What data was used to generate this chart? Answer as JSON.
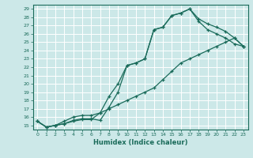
{
  "xlabel": "Humidex (Indice chaleur)",
  "bg_color": "#cce8e8",
  "grid_color": "#aed4d4",
  "line_color": "#1a6b5a",
  "ylim": [
    14.5,
    29.5
  ],
  "xlim": [
    -0.5,
    23.5
  ],
  "yticks": [
    15,
    16,
    17,
    18,
    19,
    20,
    21,
    22,
    23,
    24,
    25,
    26,
    27,
    28,
    29
  ],
  "xticks": [
    0,
    1,
    2,
    3,
    4,
    5,
    6,
    7,
    8,
    9,
    10,
    11,
    12,
    13,
    14,
    15,
    16,
    17,
    18,
    19,
    20,
    21,
    22,
    23
  ],
  "line1_x": [
    0,
    1,
    2,
    3,
    4,
    5,
    6,
    7,
    8,
    9,
    10,
    11,
    12,
    13,
    14,
    15,
    16,
    17,
    18,
    19,
    20,
    21,
    22,
    23
  ],
  "line1_y": [
    15.5,
    14.8,
    15.0,
    15.2,
    15.6,
    15.8,
    15.8,
    15.6,
    17.2,
    19.0,
    22.2,
    22.5,
    23.0,
    26.5,
    26.8,
    28.2,
    28.5,
    29.0,
    27.8,
    27.2,
    26.8,
    26.3,
    25.5,
    24.5
  ],
  "line2_x": [
    0,
    1,
    2,
    3,
    4,
    5,
    6,
    7,
    8,
    9,
    10,
    11,
    12,
    13,
    14,
    15,
    16,
    17,
    18,
    19,
    20,
    21,
    22,
    23
  ],
  "line2_y": [
    15.5,
    14.8,
    15.0,
    15.2,
    15.5,
    15.7,
    15.7,
    16.5,
    18.5,
    20.0,
    22.2,
    22.5,
    23.0,
    26.5,
    26.8,
    28.2,
    28.5,
    29.0,
    27.5,
    26.5,
    26.0,
    25.5,
    24.8,
    24.5
  ],
  "line3_x": [
    0,
    1,
    2,
    3,
    4,
    5,
    6,
    7,
    8,
    9,
    10,
    11,
    12,
    13,
    14,
    15,
    16,
    17,
    18,
    19,
    20,
    21,
    22,
    23
  ],
  "line3_y": [
    15.5,
    14.8,
    15.0,
    15.5,
    16.0,
    16.2,
    16.2,
    16.5,
    17.0,
    17.5,
    18.0,
    18.5,
    19.0,
    19.5,
    20.5,
    21.5,
    22.5,
    23.0,
    23.5,
    24.0,
    24.5,
    25.0,
    25.5,
    24.5
  ]
}
